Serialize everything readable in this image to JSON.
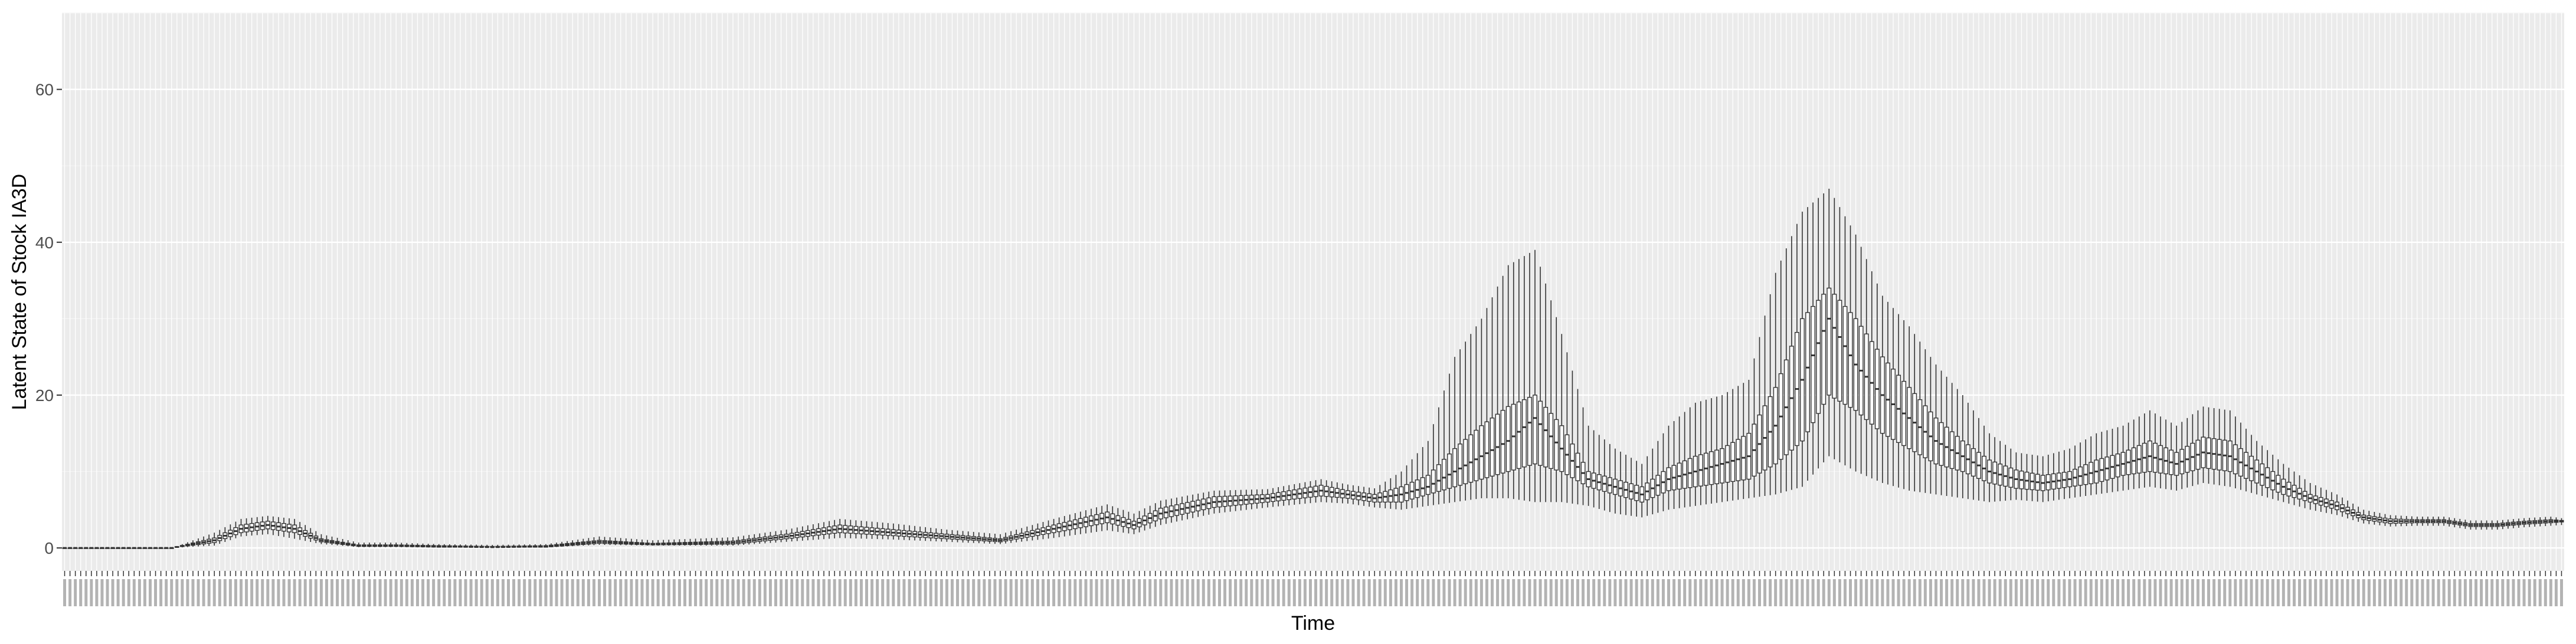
{
  "chart_data": {
    "type": "boxplot",
    "title": "",
    "xlabel": "Time",
    "ylabel": "Latent State of Stock IA3D",
    "ylim": [
      -3,
      70
    ],
    "yticks": [
      0,
      20,
      40,
      60
    ],
    "grid": true,
    "x_tick_labels_visible": false,
    "n_time_points": 468,
    "series": [
      {
        "name": "",
        "knots_t": [
          0,
          20,
          28,
          33,
          38,
          43,
          48,
          55,
          62,
          70,
          80,
          90,
          100,
          110,
          125,
          135,
          145,
          155,
          165,
          175,
          185,
          195,
          200,
          205,
          215,
          225,
          235,
          240,
          245,
          250,
          255,
          260,
          265,
          270,
          275,
          280,
          285,
          290,
          295,
          300,
          305,
          310,
          315,
          320,
          325,
          330,
          335,
          340,
          345,
          350,
          355,
          360,
          365,
          370,
          375,
          380,
          385,
          390,
          395,
          400,
          405,
          410,
          415,
          420,
          425,
          430,
          435,
          440,
          445,
          450,
          455,
          460,
          465,
          467
        ],
        "median": [
          0,
          0,
          1,
          2.5,
          3,
          2.5,
          1,
          0.3,
          0.3,
          0.2,
          0.1,
          0.2,
          0.8,
          0.5,
          0.7,
          1.5,
          2.5,
          2,
          1.5,
          1,
          2.5,
          4,
          3,
          4.5,
          6,
          6.5,
          7.5,
          7,
          6.5,
          7,
          8,
          10,
          12,
          14,
          17,
          13,
          9,
          8,
          7,
          9,
          10,
          11,
          12,
          16,
          22,
          30,
          24,
          20,
          17,
          14,
          12,
          10,
          9,
          8.5,
          9,
          10,
          11,
          12,
          11,
          12.5,
          12,
          10,
          8,
          6.5,
          5.5,
          4,
          3.5,
          3.5,
          3.5,
          3,
          3,
          3.3,
          3.5,
          3.5
        ],
        "q1": [
          0,
          0,
          0.7,
          2,
          2.5,
          2,
          0.8,
          0.2,
          0.2,
          0.1,
          0.1,
          0.1,
          0.6,
          0.4,
          0.5,
          1.2,
          2,
          1.6,
          1.2,
          0.8,
          2,
          3.3,
          2.5,
          3.8,
          5.3,
          6,
          6.8,
          6.5,
          6,
          6,
          7,
          8,
          9,
          10,
          11,
          10,
          8,
          7,
          6,
          7.5,
          8,
          8.5,
          9,
          11,
          14,
          20,
          18,
          15,
          13,
          11,
          10,
          8.5,
          7.8,
          7.5,
          8,
          8.5,
          9.5,
          10,
          9.5,
          10.5,
          10,
          8.5,
          7,
          6,
          5,
          3.7,
          3.2,
          3.3,
          3.3,
          2.8,
          2.8,
          3.1,
          3.3,
          3.4
        ],
        "q3": [
          0,
          0,
          1.3,
          3,
          3.5,
          3,
          1.2,
          0.4,
          0.4,
          0.3,
          0.2,
          0.3,
          1,
          0.6,
          0.9,
          1.8,
          3,
          2.4,
          1.8,
          1.2,
          3,
          4.7,
          3.5,
          5.2,
          6.7,
          7,
          8.2,
          7.5,
          7,
          8,
          9.5,
          13,
          16,
          18.5,
          20,
          16,
          10,
          9,
          8,
          10.5,
          12,
          13,
          15,
          21,
          30,
          34,
          30,
          25,
          21,
          17,
          14,
          11.5,
          10.2,
          9.5,
          10,
          11.5,
          12.5,
          14,
          12.5,
          14.5,
          14,
          11.5,
          9,
          7,
          6,
          4.3,
          3.8,
          3.7,
          3.7,
          3.2,
          3.2,
          3.5,
          3.7,
          3.6
        ],
        "whisker_low": [
          0,
          0,
          0.3,
          1.5,
          1.8,
          1.2,
          0.5,
          0.1,
          0.1,
          0.05,
          0.05,
          0.05,
          0.4,
          0.3,
          0.3,
          0.8,
          1.3,
          1.1,
          0.8,
          0.5,
          1.3,
          2.3,
          1.8,
          3,
          4.5,
          5.3,
          6,
          5.8,
          5.3,
          5,
          5.5,
          6,
          6.5,
          6.5,
          6,
          6,
          5.5,
          4.5,
          4,
          5,
          5.5,
          6,
          6.5,
          7,
          8,
          12,
          10,
          8.5,
          7.5,
          7,
          6.5,
          6,
          6.3,
          6,
          6.5,
          7,
          7.5,
          8,
          7.5,
          8.5,
          8,
          7,
          6,
          5,
          4.3,
          3.2,
          2.8,
          2.9,
          2.9,
          2.4,
          2.4,
          2.7,
          2.9,
          3
        ],
        "whisker_high": [
          0,
          0,
          2,
          3.8,
          4.2,
          3.8,
          1.8,
          0.7,
          0.7,
          0.5,
          0.4,
          0.5,
          1.5,
          1,
          1.4,
          2.4,
          3.8,
          3.2,
          2.4,
          1.8,
          3.8,
          5.7,
          4.5,
          6.2,
          7.5,
          7.7,
          9,
          8.3,
          7.8,
          10,
          14,
          25,
          30,
          37,
          39,
          28,
          16,
          13,
          11,
          16,
          19,
          20,
          22,
          36,
          44,
          47,
          41,
          33,
          29,
          24,
          20,
          15,
          12.5,
          12,
          13,
          15,
          16,
          18,
          16,
          18.5,
          18,
          14,
          11,
          8.5,
          7,
          5,
          4.3,
          4.1,
          4.1,
          3.6,
          3.6,
          3.9,
          4.1,
          3.9
        ]
      }
    ]
  },
  "colors": {
    "panel_background": "#ebebeb",
    "grid_major": "#ffffff",
    "grid_minor": "#f5f5f5",
    "box_line": "#333333",
    "tick_label": "#4d4d4d",
    "axis_title": "#000000"
  }
}
